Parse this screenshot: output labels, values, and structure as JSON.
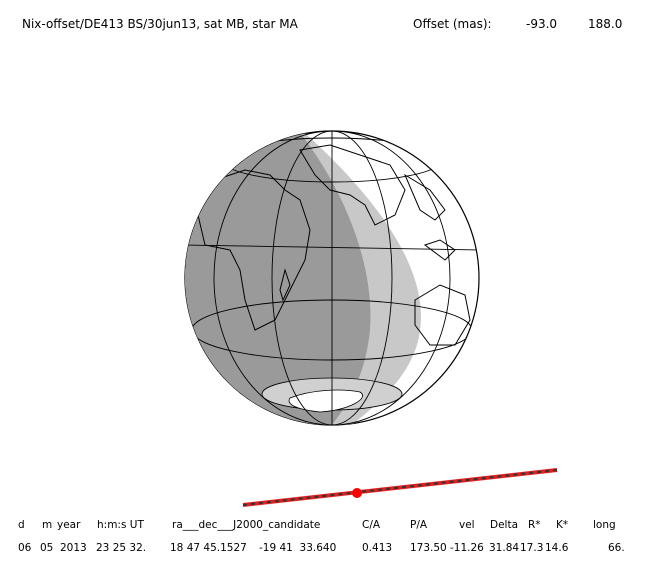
{
  "header": {
    "title": "Nix-offset/DE413 BS/30jun13, sat MB, star MA",
    "offset_label": "Offset (mas):",
    "offset_values": [
      "-93.0",
      "188.0"
    ]
  },
  "table": {
    "columns": [
      "d",
      "m",
      "year",
      "h:m:s UT",
      "ra___dec___J2000_candidate",
      "C/A",
      "P/A",
      "vel",
      "Delta",
      "R*",
      "K*",
      "long"
    ],
    "rows": [
      [
        "06",
        "05",
        "2013",
        "23 25 32.",
        "18 47 45.1527",
        "-19 41  33.640",
        "0.413",
        "173.50",
        "-11.26",
        "31.84",
        "17.3",
        "14.6",
        "66."
      ]
    ]
  }
}
